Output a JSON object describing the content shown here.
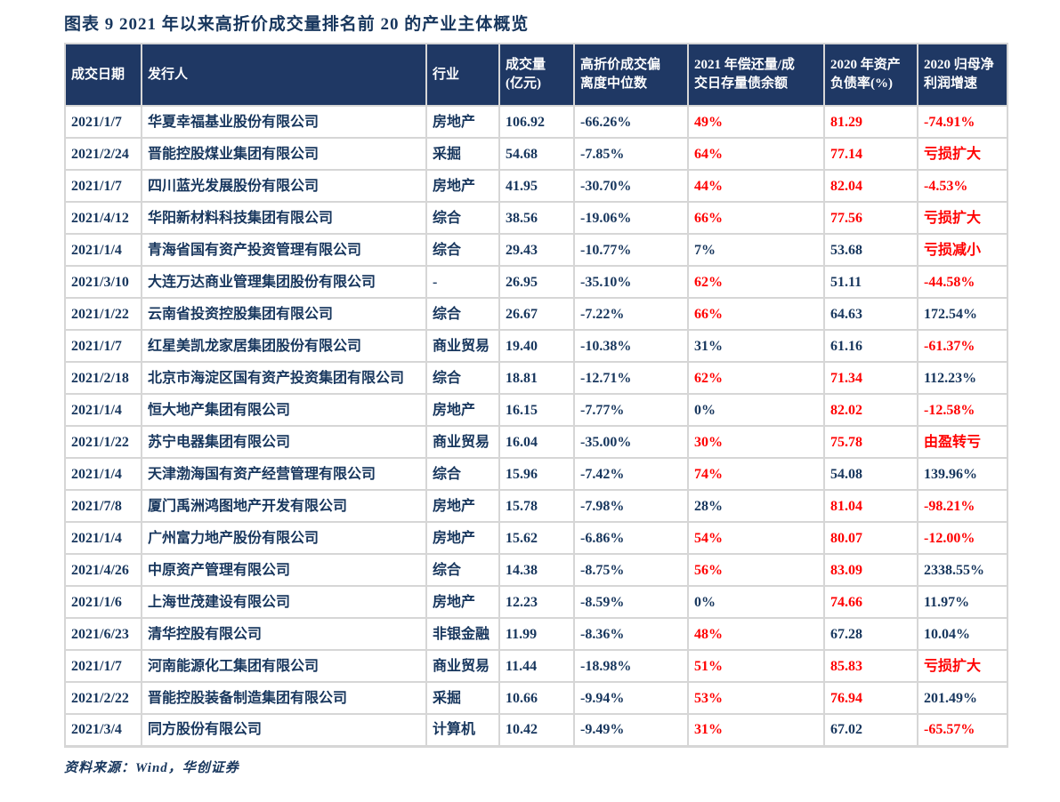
{
  "title": "图表 9   2021 年以来高折价成交量排名前 20 的产业主体概览",
  "source": "资料来源：Wind，华创证券",
  "colors": {
    "header_bg": "#1F3864",
    "text_blue": "#17365D",
    "alert_red": "#FF0000",
    "grid_line": "#D6D6D6"
  },
  "table": {
    "headers": [
      "成交日期",
      "发行人",
      "行业",
      "成交量\n(亿元)",
      "高折价成交偏\n离度中位数",
      "2021 年偿还量/成\n交日存量债余额",
      "2020 年资产\n负债率(%)",
      "2020 归母净\n利润增速"
    ],
    "rows": [
      {
        "date": "2021/1/7",
        "issuer": "华夏幸福基业股份有限公司",
        "industry": "房地产",
        "volume": "106.92",
        "deviation": "-66.26%",
        "repay": "49%",
        "repay_color": "red",
        "debt": "81.29",
        "debt_color": "red",
        "profit": "-74.91%",
        "profit_color": "red"
      },
      {
        "date": "2021/2/24",
        "issuer": "晋能控股煤业集团有限公司",
        "industry": "采掘",
        "volume": "54.68",
        "deviation": "-7.85%",
        "repay": "64%",
        "repay_color": "red",
        "debt": "77.14",
        "debt_color": "red",
        "profit": "亏损扩大",
        "profit_color": "red"
      },
      {
        "date": "2021/1/7",
        "issuer": "四川蓝光发展股份有限公司",
        "industry": "房地产",
        "volume": "41.95",
        "deviation": "-30.70%",
        "repay": "44%",
        "repay_color": "red",
        "debt": "82.04",
        "debt_color": "red",
        "profit": "-4.53%",
        "profit_color": "red"
      },
      {
        "date": "2021/4/12",
        "issuer": "华阳新材料科技集团有限公司",
        "industry": "综合",
        "volume": "38.56",
        "deviation": "-19.06%",
        "repay": "66%",
        "repay_color": "red",
        "debt": "77.56",
        "debt_color": "red",
        "profit": "亏损扩大",
        "profit_color": "red"
      },
      {
        "date": "2021/1/4",
        "issuer": "青海省国有资产投资管理有限公司",
        "industry": "综合",
        "volume": "29.43",
        "deviation": "-10.77%",
        "repay": "7%",
        "repay_color": "blue",
        "debt": "53.68",
        "debt_color": "blue",
        "profit": "亏损减小",
        "profit_color": "red"
      },
      {
        "date": "2021/3/10",
        "issuer": "大连万达商业管理集团股份有限公司",
        "industry": "-",
        "volume": "26.95",
        "deviation": "-35.10%",
        "repay": "62%",
        "repay_color": "red",
        "debt": "51.11",
        "debt_color": "blue",
        "profit": "-44.58%",
        "profit_color": "red"
      },
      {
        "date": "2021/1/22",
        "issuer": "云南省投资控股集团有限公司",
        "industry": "综合",
        "volume": "26.67",
        "deviation": "-7.22%",
        "repay": "66%",
        "repay_color": "red",
        "debt": "64.63",
        "debt_color": "blue",
        "profit": "172.54%",
        "profit_color": "blue"
      },
      {
        "date": "2021/1/7",
        "issuer": "红星美凯龙家居集团股份有限公司",
        "industry": "商业贸易",
        "volume": "19.40",
        "deviation": "-10.38%",
        "repay": "31%",
        "repay_color": "blue",
        "debt": "61.16",
        "debt_color": "blue",
        "profit": "-61.37%",
        "profit_color": "red"
      },
      {
        "date": "2021/2/18",
        "issuer": "北京市海淀区国有资产投资集团有限公司",
        "industry": "综合",
        "volume": "18.81",
        "deviation": "-12.71%",
        "repay": "62%",
        "repay_color": "red",
        "debt": "71.34",
        "debt_color": "red",
        "profit": "112.23%",
        "profit_color": "blue"
      },
      {
        "date": "2021/1/4",
        "issuer": "恒大地产集团有限公司",
        "industry": "房地产",
        "volume": "16.15",
        "deviation": "-7.77%",
        "repay": "0%",
        "repay_color": "blue",
        "debt": "82.02",
        "debt_color": "red",
        "profit": "-12.58%",
        "profit_color": "red"
      },
      {
        "date": "2021/1/22",
        "issuer": "苏宁电器集团有限公司",
        "industry": "商业贸易",
        "volume": "16.04",
        "deviation": "-35.00%",
        "repay": "30%",
        "repay_color": "red",
        "debt": "75.78",
        "debt_color": "red",
        "profit": "由盈转亏",
        "profit_color": "red"
      },
      {
        "date": "2021/1/4",
        "issuer": "天津渤海国有资产经营管理有限公司",
        "industry": "综合",
        "volume": "15.96",
        "deviation": "-7.42%",
        "repay": "74%",
        "repay_color": "red",
        "debt": "54.08",
        "debt_color": "blue",
        "profit": "139.96%",
        "profit_color": "blue"
      },
      {
        "date": "2021/7/8",
        "issuer": "厦门禹洲鸿图地产开发有限公司",
        "industry": "房地产",
        "volume": "15.78",
        "deviation": "-7.98%",
        "repay": "28%",
        "repay_color": "blue",
        "debt": "81.04",
        "debt_color": "red",
        "profit": "-98.21%",
        "profit_color": "red"
      },
      {
        "date": "2021/1/4",
        "issuer": "广州富力地产股份有限公司",
        "industry": "房地产",
        "volume": "15.62",
        "deviation": "-6.86%",
        "repay": "54%",
        "repay_color": "red",
        "debt": "80.07",
        "debt_color": "red",
        "profit": "-12.00%",
        "profit_color": "red"
      },
      {
        "date": "2021/4/26",
        "issuer": "中原资产管理有限公司",
        "industry": "综合",
        "volume": "14.38",
        "deviation": "-8.75%",
        "repay": "56%",
        "repay_color": "red",
        "debt": "83.09",
        "debt_color": "red",
        "profit": "2338.55%",
        "profit_color": "blue"
      },
      {
        "date": "2021/1/6",
        "issuer": "上海世茂建设有限公司",
        "industry": "房地产",
        "volume": "12.23",
        "deviation": "-8.59%",
        "repay": "0%",
        "repay_color": "blue",
        "debt": "74.66",
        "debt_color": "red",
        "profit": "11.97%",
        "profit_color": "blue"
      },
      {
        "date": "2021/6/23",
        "issuer": "清华控股有限公司",
        "industry": "非银金融",
        "volume": "11.99",
        "deviation": "-8.36%",
        "repay": "48%",
        "repay_color": "red",
        "debt": "67.28",
        "debt_color": "blue",
        "profit": "10.04%",
        "profit_color": "blue"
      },
      {
        "date": "2021/1/7",
        "issuer": "河南能源化工集团有限公司",
        "industry": "商业贸易",
        "volume": "11.44",
        "deviation": "-18.98%",
        "repay": "51%",
        "repay_color": "red",
        "debt": "85.83",
        "debt_color": "red",
        "profit": "亏损扩大",
        "profit_color": "red"
      },
      {
        "date": "2021/2/22",
        "issuer": "晋能控股装备制造集团有限公司",
        "industry": "采掘",
        "volume": "10.66",
        "deviation": "-9.94%",
        "repay": "53%",
        "repay_color": "red",
        "debt": "76.94",
        "debt_color": "red",
        "profit": "201.49%",
        "profit_color": "blue"
      },
      {
        "date": "2021/3/4",
        "issuer": "同方股份有限公司",
        "industry": "计算机",
        "volume": "10.42",
        "deviation": "-9.49%",
        "repay": "31%",
        "repay_color": "red",
        "debt": "67.02",
        "debt_color": "blue",
        "profit": "-65.57%",
        "profit_color": "red"
      }
    ]
  }
}
